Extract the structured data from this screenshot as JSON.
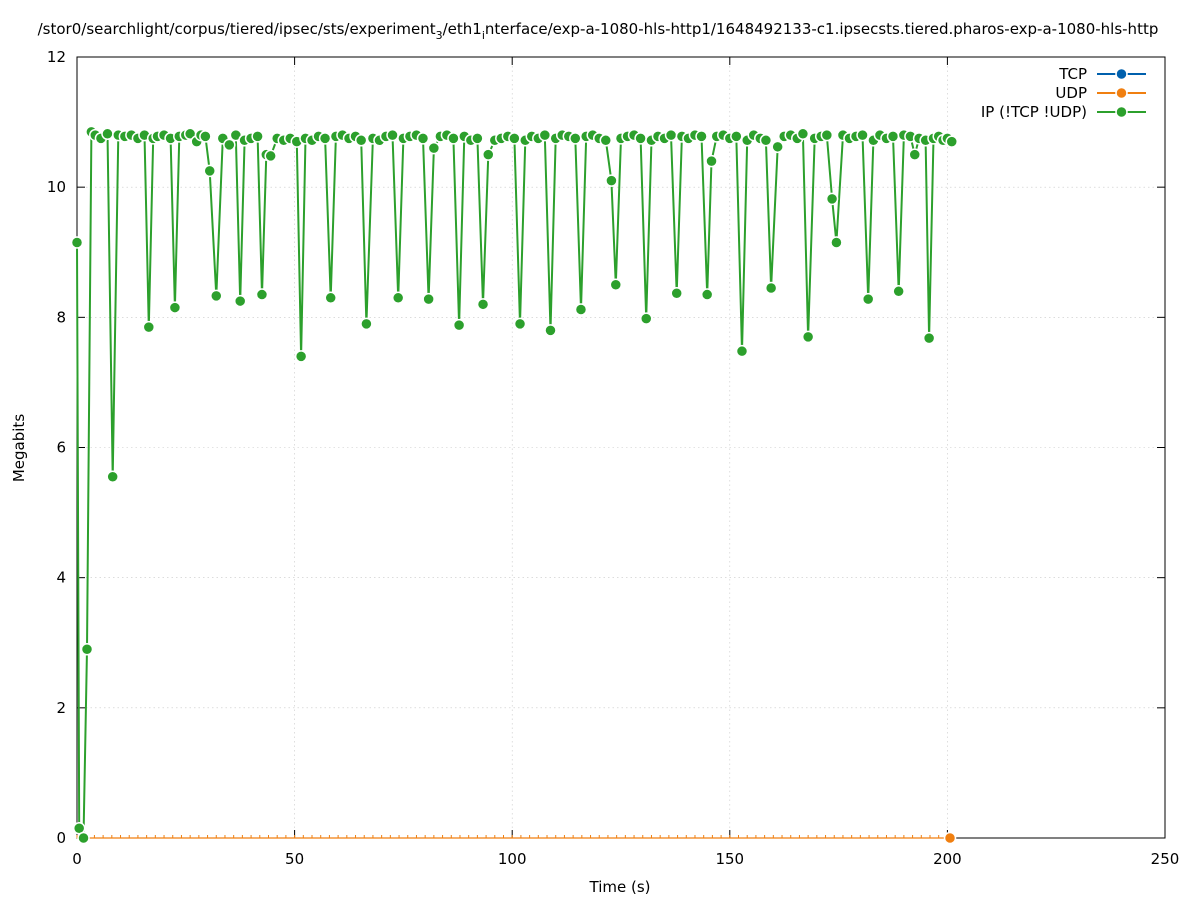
{
  "chart_data": {
    "type": "line",
    "title_main": "/stor0/searchlight/corpus/tiered/ipsec/sts/experiment",
    "title_sub1": "3",
    "title_mid": "/eth1",
    "title_sub2": "i",
    "title_tail": "nterface/exp-a-1080-hls-http1/1648492133-c1.ipsecsts.tiered.pharos-exp-a-1080-hls-http",
    "xlabel": "Time (s)",
    "ylabel": "Megabits",
    "xlim": [
      0,
      250
    ],
    "ylim": [
      0,
      12
    ],
    "xticks": [
      0,
      50,
      100,
      150,
      200,
      250
    ],
    "yticks": [
      0,
      2,
      4,
      6,
      8,
      10,
      12
    ],
    "grid": true,
    "legend_position": "top-right",
    "series": [
      {
        "name": "TCP",
        "color": "#0060ad",
        "x": [],
        "y": []
      },
      {
        "name": "UDP",
        "color": "#f07f10",
        "x": [
          0,
          2,
          4,
          6,
          8,
          10,
          12,
          14,
          16,
          18,
          20,
          22,
          24,
          26,
          28,
          30,
          32,
          34,
          36,
          38,
          40,
          42,
          44,
          46,
          48,
          50,
          52,
          54,
          56,
          58,
          60,
          62,
          64,
          66,
          68,
          70,
          72,
          74,
          76,
          78,
          80,
          82,
          84,
          86,
          88,
          90,
          92,
          94,
          96,
          98,
          100,
          102,
          104,
          106,
          108,
          110,
          112,
          114,
          116,
          118,
          120,
          122,
          124,
          126,
          128,
          130,
          132,
          134,
          136,
          138,
          140,
          142,
          144,
          146,
          148,
          150,
          152,
          154,
          156,
          158,
          160,
          162,
          164,
          166,
          168,
          170,
          172,
          174,
          176,
          178,
          180,
          182,
          184,
          186,
          188,
          190,
          192,
          194,
          196,
          198,
          200.6
        ],
        "y": [
          0,
          0,
          0,
          0,
          0,
          0,
          0,
          0,
          0,
          0,
          0,
          0,
          0,
          0,
          0,
          0,
          0,
          0,
          0,
          0,
          0,
          0,
          0,
          0,
          0,
          0,
          0,
          0,
          0,
          0,
          0,
          0,
          0,
          0,
          0,
          0,
          0,
          0,
          0,
          0,
          0,
          0,
          0,
          0,
          0,
          0,
          0,
          0,
          0,
          0,
          0,
          0,
          0,
          0,
          0,
          0,
          0,
          0,
          0,
          0,
          0,
          0,
          0,
          0,
          0,
          0,
          0,
          0,
          0,
          0,
          0,
          0,
          0,
          0,
          0,
          0,
          0,
          0,
          0,
          0,
          0,
          0,
          0,
          0,
          0,
          0,
          0,
          0,
          0,
          0,
          0,
          0,
          0,
          0,
          0,
          0,
          0,
          0,
          0,
          0,
          0
        ]
      },
      {
        "name": "IP (!TCP  !UDP)",
        "color": "#2ca02c",
        "x": [
          0,
          0.5,
          1.5,
          2.3,
          3.3,
          4.2,
          5.5,
          7,
          8.2,
          9.5,
          11,
          12.5,
          14,
          15.5,
          16.5,
          17.5,
          18.5,
          20,
          21.5,
          22.5,
          23.5,
          25,
          26,
          27.5,
          28.5,
          29.5,
          30.5,
          32,
          33.5,
          35,
          36.5,
          37.5,
          38.5,
          40,
          41.5,
          42.5,
          43.5,
          44.5,
          46,
          47.5,
          49,
          50.5,
          51.5,
          52.5,
          54,
          55.5,
          57,
          58.3,
          59.5,
          61,
          62.5,
          64,
          65.3,
          66.5,
          68,
          69.5,
          71,
          72.5,
          73.8,
          75,
          76.5,
          78,
          79.5,
          80.8,
          82,
          83.5,
          85,
          86.5,
          87.8,
          89,
          90.5,
          92,
          93.3,
          94.5,
          96,
          97.5,
          99,
          100.5,
          101.8,
          103,
          104.5,
          106,
          107.5,
          108.8,
          110,
          111.5,
          113,
          114.5,
          115.8,
          117,
          118.5,
          120,
          121.5,
          122.8,
          123.8,
          125,
          126.5,
          128,
          129.5,
          130.8,
          132,
          133.5,
          135,
          136.5,
          137.8,
          139,
          140.5,
          142,
          143.5,
          144.8,
          145.8,
          147,
          148.5,
          150,
          151.5,
          152.8,
          154,
          155.5,
          157,
          158.3,
          159.5,
          161,
          162.5,
          164,
          165.5,
          166.8,
          168,
          169.5,
          171,
          172.3,
          173.5,
          174.5,
          176,
          177.5,
          179,
          180.5,
          181.8,
          183,
          184.5,
          186,
          187.5,
          188.8,
          190,
          191.5,
          192.5,
          193.5,
          195,
          195.8,
          196.8,
          198,
          199,
          200,
          201
        ],
        "y": [
          9.15,
          0.15,
          0,
          2.9,
          10.85,
          10.8,
          10.75,
          10.82,
          5.55,
          10.8,
          10.78,
          10.8,
          10.75,
          10.8,
          7.85,
          10.75,
          10.78,
          10.8,
          10.75,
          8.15,
          10.78,
          10.8,
          10.82,
          10.7,
          10.8,
          10.78,
          10.25,
          8.33,
          10.75,
          10.65,
          10.8,
          8.25,
          10.72,
          10.75,
          10.78,
          8.35,
          10.5,
          10.48,
          10.75,
          10.72,
          10.75,
          10.7,
          7.4,
          10.75,
          10.72,
          10.78,
          10.75,
          8.3,
          10.78,
          10.8,
          10.75,
          10.78,
          10.72,
          7.9,
          10.75,
          10.72,
          10.78,
          10.8,
          8.3,
          10.75,
          10.78,
          10.8,
          10.75,
          8.28,
          10.6,
          10.78,
          10.8,
          10.75,
          7.88,
          10.78,
          10.72,
          10.75,
          8.2,
          10.5,
          10.72,
          10.75,
          10.78,
          10.75,
          7.9,
          10.72,
          10.78,
          10.75,
          10.8,
          7.8,
          10.75,
          10.8,
          10.78,
          10.75,
          8.12,
          10.78,
          10.8,
          10.75,
          10.72,
          10.1,
          8.5,
          10.75,
          10.78,
          10.8,
          10.75,
          7.98,
          10.72,
          10.78,
          10.75,
          10.8,
          8.37,
          10.78,
          10.75,
          10.8,
          10.78,
          8.35,
          10.4,
          10.78,
          10.8,
          10.75,
          10.78,
          7.48,
          10.72,
          10.8,
          10.75,
          10.72,
          8.45,
          10.62,
          10.78,
          10.8,
          10.75,
          10.82,
          7.7,
          10.75,
          10.78,
          10.8,
          9.82,
          9.15,
          10.8,
          10.75,
          10.78,
          10.8,
          8.28,
          10.72,
          10.8,
          10.75,
          10.78,
          8.4,
          10.8,
          10.78,
          10.5,
          10.75,
          10.72,
          7.68,
          10.75,
          10.78,
          10.72,
          10.75,
          10.7
        ]
      }
    ]
  }
}
